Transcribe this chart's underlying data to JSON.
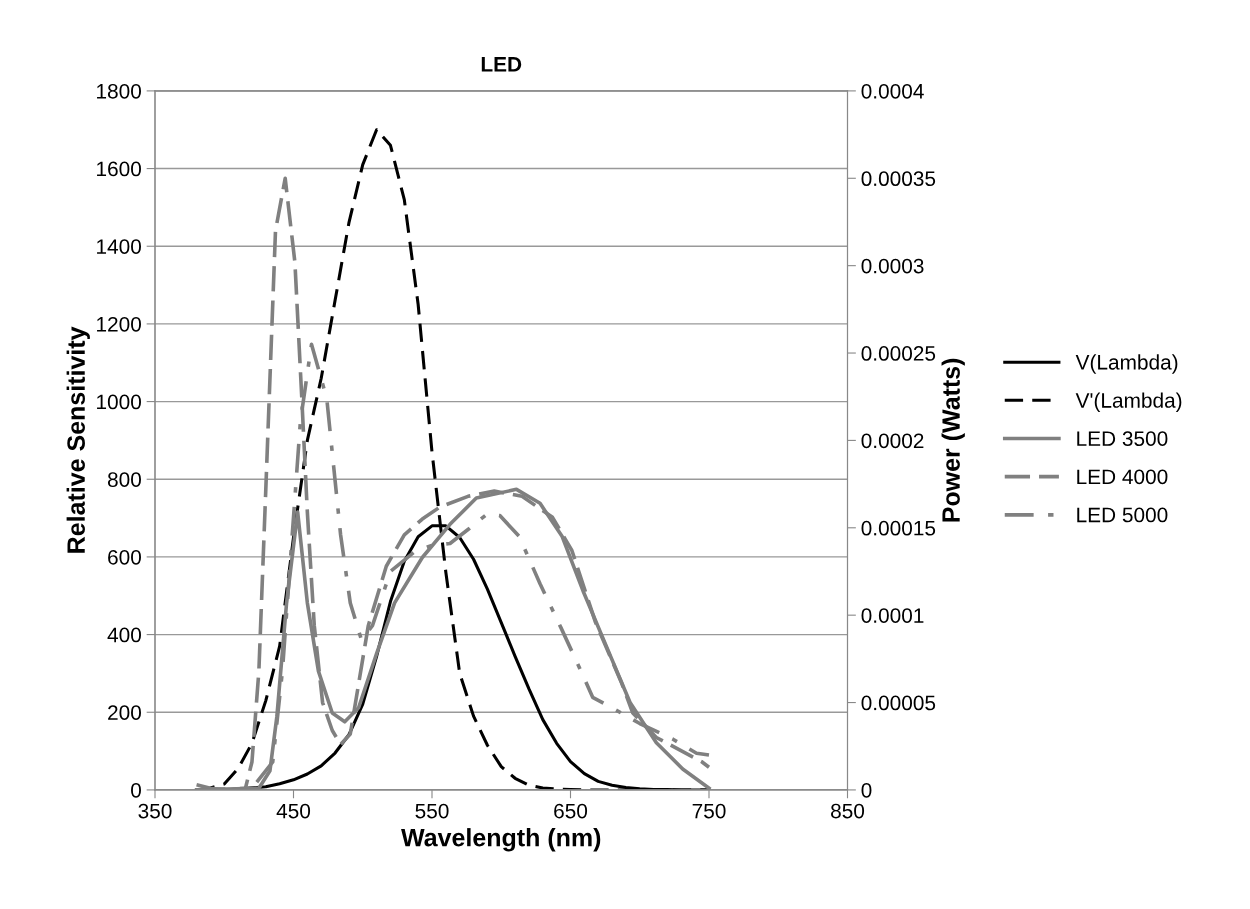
{
  "chart_data": {
    "type": "line",
    "title": "LED",
    "xlabel": "Wavelength (nm)",
    "ylabel": "Relative Sensitivity",
    "y2label": "Power (Watts)",
    "xlim": [
      350,
      850
    ],
    "xticks": [
      350,
      450,
      550,
      650,
      750,
      850
    ],
    "ylim": [
      0,
      1800
    ],
    "yticks": [
      0,
      200,
      400,
      600,
      800,
      1000,
      1200,
      1400,
      1600,
      1800
    ],
    "y2lim": [
      0,
      0.0004
    ],
    "y2ticks": [
      {
        "value": 0,
        "label": "0"
      },
      {
        "value": 5e-05,
        "label": "0.00005"
      },
      {
        "value": 0.0001,
        "label": "0.0001"
      },
      {
        "value": 0.00015,
        "label": "0.00015"
      },
      {
        "value": 0.0002,
        "label": "0.0002"
      },
      {
        "value": 0.00025,
        "label": "0.00025"
      },
      {
        "value": 0.0003,
        "label": "0.0003"
      },
      {
        "value": 0.00035,
        "label": "0.00035"
      },
      {
        "value": 0.0004,
        "label": "0.0004"
      }
    ],
    "grid": "y",
    "legend": "right",
    "marker": "none",
    "series": [
      {
        "name": "V(Lambda)",
        "color": "#000000",
        "line_style": "solid",
        "x": [
          380,
          390,
          400,
          430,
          440,
          450,
          460,
          470,
          480,
          490,
          500,
          510,
          520,
          530,
          540,
          550,
          560,
          570,
          580,
          590,
          600,
          610,
          620,
          630,
          640,
          650,
          660,
          670,
          680,
          690,
          700,
          710,
          720,
          730,
          740,
          750
        ],
        "values": [
          0,
          0,
          0,
          8,
          16,
          26,
          41,
          62,
          95,
          142,
          221,
          344,
          485,
          589,
          652,
          680,
          680,
          650,
          594,
          517,
          431,
          344,
          260,
          181,
          120,
          73,
          42,
          22,
          12,
          6,
          3,
          1,
          1,
          0,
          0,
          0
        ]
      },
      {
        "name": "V'(Lambda)",
        "color": "#000000",
        "line_style": "dashed",
        "x": [
          380,
          390,
          400,
          410,
          420,
          430,
          440,
          450,
          460,
          470,
          480,
          490,
          500,
          510,
          520,
          530,
          540,
          550,
          560,
          570,
          580,
          590,
          600,
          610,
          620,
          630,
          640,
          650,
          660,
          670,
          680,
          690,
          700,
          710,
          720,
          730,
          740,
          750
        ],
        "values": [
          0,
          5,
          15,
          55,
          120,
          230,
          370,
          650,
          900,
          1060,
          1260,
          1460,
          1610,
          1700,
          1660,
          1520,
          1250,
          870,
          560,
          300,
          190,
          115,
          60,
          30,
          12,
          5,
          2,
          1,
          0,
          0,
          0,
          0,
          0,
          0,
          0,
          0,
          0,
          0
        ]
      },
      {
        "name": "LED 3500",
        "color": "#808080",
        "line_style": "solid",
        "axis": "y2",
        "x": [
          380,
          425,
          433,
          438,
          445,
          453,
          460,
          468,
          478,
          487,
          497,
          510,
          523,
          543,
          563,
          582,
          611,
          628,
          644,
          659,
          676,
          693,
          712,
          731,
          750
        ],
        "values": [
          0,
          1e-06,
          1.1e-05,
          4.2e-05,
          0.000107,
          0.000159,
          0.000107,
          6.8e-05,
          4.4e-05,
          3.9e-05,
          4.7e-05,
          7.8e-05,
          0.000107,
          0.000133,
          0.000152,
          0.000167,
          0.000172,
          0.000164,
          0.000145,
          0.000114,
          8.2e-05,
          5e-05,
          2.7e-05,
          1.2e-05,
          1e-06
        ]
      },
      {
        "name": "LED 4000",
        "color": "#808080",
        "line_style": "dashed",
        "axis": "y2",
        "x": [
          380,
          390,
          400,
          415,
          420,
          425,
          430,
          437,
          444,
          451,
          456,
          460,
          465,
          471,
          478,
          484,
          491,
          504,
          517,
          530,
          543,
          556,
          576,
          595,
          615,
          637,
          651,
          668,
          687,
          695,
          712,
          745,
          750
        ],
        "values": [
          3e-06,
          1e-06,
          0,
          0,
          1.6e-05,
          6.8e-05,
          0.000172,
          0.00032,
          0.00035,
          0.000302,
          0.000224,
          0.000159,
          9.4e-05,
          5e-05,
          3.4e-05,
          2.6e-05,
          3.2e-05,
          9.4e-05,
          0.000128,
          0.000146,
          0.000155,
          0.000162,
          0.000168,
          0.000171,
          0.000168,
          0.000156,
          0.000137,
          9.6e-05,
          6.1e-05,
          4.4e-05,
          3e-05,
          1.6e-05,
          1.3e-05
        ]
      },
      {
        "name": "LED 5000",
        "color": "#808080",
        "line_style": "dashdot",
        "axis": "y2",
        "x": [
          380,
          420,
          435,
          442,
          455,
          463,
          474,
          479,
          484,
          491,
          499,
          507,
          520,
          537,
          550,
          563,
          576,
          590,
          599,
          613,
          628,
          643,
          657,
          666,
          680,
          700,
          724,
          741,
          750
        ],
        "values": [
          0,
          1e-06,
          1.6e-05,
          6.8e-05,
          0.000211,
          0.000255,
          0.000224,
          0.000185,
          0.000146,
          0.000107,
          8.6e-05,
          9.4e-05,
          0.000125,
          0.000136,
          0.00014,
          0.000141,
          0.000149,
          0.000158,
          0.000157,
          0.000145,
          0.000118,
          9.3e-05,
          6.9e-05,
          5.3e-05,
          4.7e-05,
          3.8e-05,
          2.9e-05,
          2.1e-05,
          2e-05
        ]
      }
    ]
  }
}
